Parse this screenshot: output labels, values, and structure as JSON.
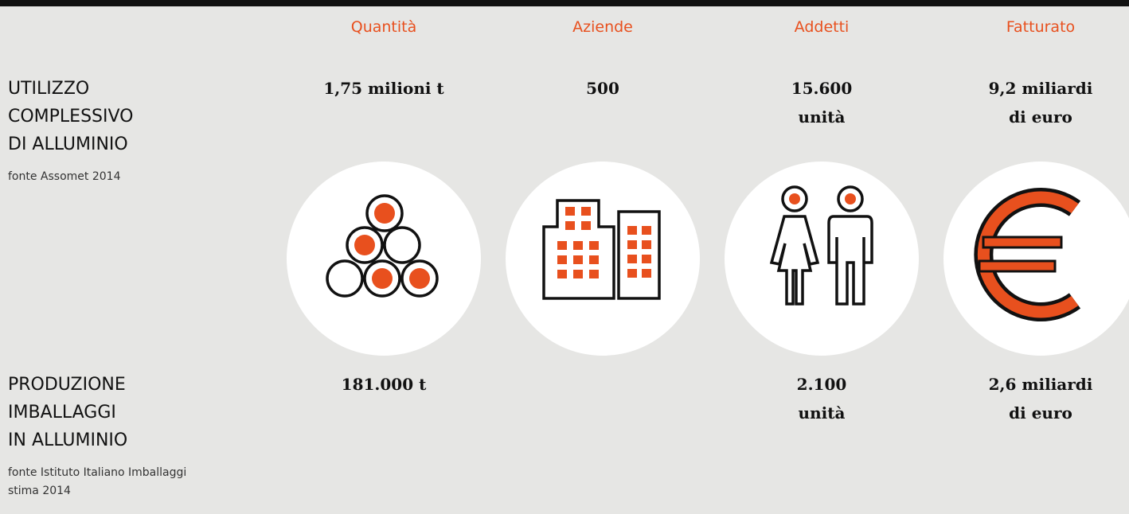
{
  "header": {
    "columns": [
      "Quantità",
      "Aziende",
      "Addetti",
      "Fatturato"
    ]
  },
  "rows": [
    {
      "label": [
        "UTILIZZO",
        "COMPLESSIVO",
        "DI ALLUMINIO"
      ],
      "source": [
        "fonte Assomet 2014"
      ],
      "values": [
        [
          "1,75 milioni t"
        ],
        [
          "500"
        ],
        [
          "15.600",
          "unità"
        ],
        [
          "9,2 miliardi",
          "di euro"
        ]
      ]
    },
    {
      "label": [
        "PRODUZIONE",
        "IMBALLAGGI",
        "IN ALLUMINIO"
      ],
      "source": [
        "fonte Istituto Italiano Imballaggi",
        "stima 2014"
      ],
      "values": [
        [
          "181.000 t"
        ],
        null,
        [
          "2.100",
          "unità"
        ],
        [
          "2,6 miliardi",
          "di euro"
        ]
      ]
    }
  ]
}
